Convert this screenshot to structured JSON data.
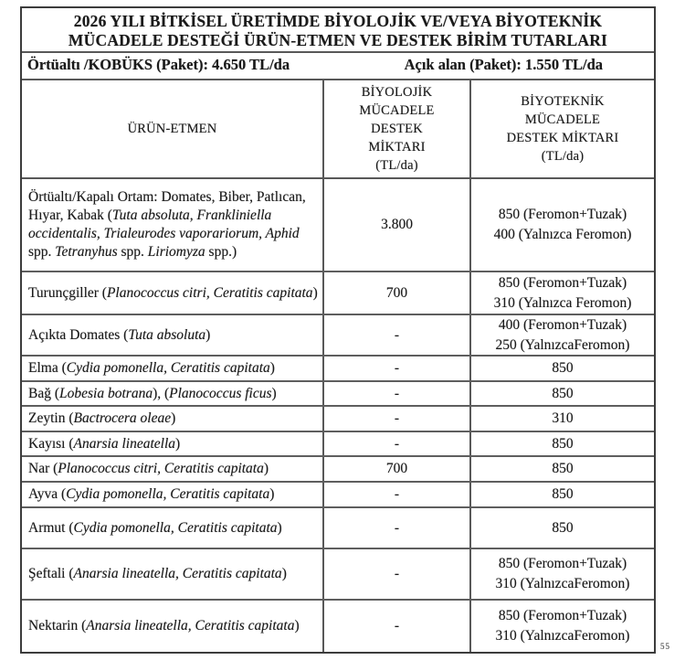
{
  "document": {
    "title_line1": "2026 YILI BİTKİSEL ÜRETİMDE BİYOLOJİK VE/VEYA BİYOTEKNİK",
    "title_line2": "MÜCADELE DESTEĞİ ÜRÜN-ETMEN VE DESTEK BİRİM TUTARLARI",
    "package_rates": {
      "covered": "Örtüaltı /KOBÜKS (Paket): 4.650 TL/da",
      "open_field": "Açık alan (Paket): 1.550 TL/da"
    },
    "page_mark": "55"
  },
  "table": {
    "headers": {
      "product": "ÜRÜN-ETMEN",
      "bio": [
        "BİYOLOJİK",
        "MÜCADELE",
        "DESTEK",
        "MİKTARI",
        "(TL/da)"
      ],
      "biotek": [
        "BİYOTEKNİK",
        "MÜCADELE",
        "DESTEK MİKTARI",
        "(TL/da)"
      ]
    },
    "rows": [
      {
        "name": [
          {
            "t": "Örtüaltı/Kapalı Ortam: Domates, Biber, Patlıcan, Hıyar, Kabak (",
            "i": false
          },
          {
            "t": "Tuta absoluta, Frankliniella occidentalis, Trialeurodes vaporariorum, Aphid",
            "i": true
          },
          {
            "t": " spp. ",
            "i": false
          },
          {
            "t": "Tetranyhus",
            "i": true
          },
          {
            "t": " spp. ",
            "i": false
          },
          {
            "t": "Liriomyza",
            "i": true
          },
          {
            "t": " spp.)",
            "i": false
          }
        ],
        "bio": "3.800",
        "biotek": [
          "850 (Feromon+Tuzak)",
          "400 (Yalnızca Feromon)"
        ]
      },
      {
        "name": [
          {
            "t": "Turunçgiller (",
            "i": false
          },
          {
            "t": "Planococcus citri, Ceratitis capitata",
            "i": true
          },
          {
            "t": ")",
            "i": false
          }
        ],
        "bio": "700",
        "biotek": [
          "850 (Feromon+Tuzak)",
          "310 (Yalnızca Feromon)"
        ]
      },
      {
        "name": [
          {
            "t": "Açıkta Domates (",
            "i": false
          },
          {
            "t": "Tuta absoluta",
            "i": true
          },
          {
            "t": ")",
            "i": false
          }
        ],
        "bio": "-",
        "biotek": [
          "400 (Feromon+Tuzak)",
          "250 (YalnızcaFeromon)"
        ]
      },
      {
        "name": [
          {
            "t": "Elma (",
            "i": false
          },
          {
            "t": "Cydia pomonella, Ceratitis capitata",
            "i": true
          },
          {
            "t": ")",
            "i": false
          }
        ],
        "bio": "-",
        "biotek": [
          "850"
        ]
      },
      {
        "name": [
          {
            "t": "Bağ (",
            "i": false
          },
          {
            "t": "Lobesia botrana",
            "i": true
          },
          {
            "t": "), (",
            "i": false
          },
          {
            "t": "Planococcus ficus",
            "i": true
          },
          {
            "t": ")",
            "i": false
          }
        ],
        "bio": "-",
        "biotek": [
          "850"
        ]
      },
      {
        "name": [
          {
            "t": "Zeytin (",
            "i": false
          },
          {
            "t": "Bactrocera oleae",
            "i": true
          },
          {
            "t": ")",
            "i": false
          }
        ],
        "bio": "-",
        "biotek": [
          "310"
        ]
      },
      {
        "name": [
          {
            "t": "Kayısı (",
            "i": false
          },
          {
            "t": "Anarsia lineatella",
            "i": true
          },
          {
            "t": ")",
            "i": false
          }
        ],
        "bio": "-",
        "biotek": [
          "850"
        ]
      },
      {
        "name": [
          {
            "t": "Nar (",
            "i": false
          },
          {
            "t": "Planococcus citri, Ceratitis capitata",
            "i": true
          },
          {
            "t": ")",
            "i": false
          }
        ],
        "bio": "700",
        "biotek": [
          "850"
        ]
      },
      {
        "name": [
          {
            "t": "Ayva (",
            "i": false
          },
          {
            "t": "Cydia pomonella, Ceratitis capitata",
            "i": true
          },
          {
            "t": ")",
            "i": false
          }
        ],
        "bio": "-",
        "biotek": [
          "850"
        ]
      },
      {
        "name": [
          {
            "t": "Armut (",
            "i": false
          },
          {
            "t": "Cydia pomonella, Ceratitis capitata",
            "i": true
          },
          {
            "t": ")",
            "i": false
          }
        ],
        "bio": "-",
        "biotek": [
          "850"
        ]
      },
      {
        "name": [
          {
            "t": "Şeftali (",
            "i": false
          },
          {
            "t": "Anarsia lineatella, Ceratitis capitata",
            "i": true
          },
          {
            "t": ")",
            "i": false
          }
        ],
        "bio": "-",
        "biotek": [
          "850 (Feromon+Tuzak)",
          "310 (YalnızcaFeromon)"
        ]
      },
      {
        "name": [
          {
            "t": "Nektarin (",
            "i": false
          },
          {
            "t": "Anarsia lineatella, Ceratitis capitata",
            "i": true
          },
          {
            "t": ")",
            "i": false
          }
        ],
        "bio": "-",
        "biotek": [
          "850 (Feromon+Tuzak)",
          "310 (YalnızcaFeromon)"
        ]
      }
    ]
  }
}
